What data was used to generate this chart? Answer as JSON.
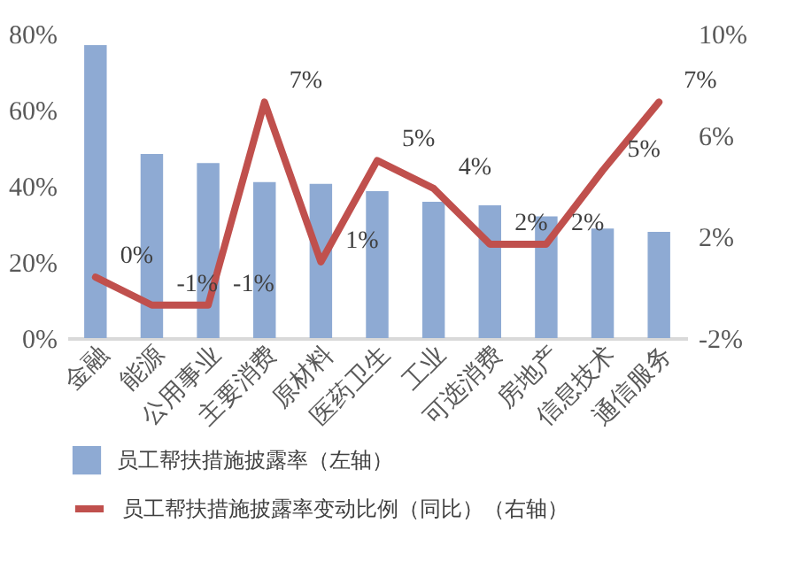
{
  "chart_data": {
    "type": "bar",
    "categories": [
      "金融",
      "能源",
      "公用事业",
      "主要消费",
      "原材料",
      "医药卫生",
      "工业",
      "可选消费",
      "房地产",
      "信息技术",
      "通信服务"
    ],
    "series": [
      {
        "name": "员工帮扶措施披露率（左轴）",
        "color": "#8eaad3",
        "values": [
          77,
          48.4,
          46,
          41,
          40.5,
          38.6,
          35.8,
          34.9,
          32,
          28.8,
          27.9
        ]
      },
      {
        "name": "员工帮扶措施披露率变动比例（同比）（右轴）",
        "type": "line",
        "axis": "y2",
        "color": "#c0504d",
        "values": [
          0.4,
          -0.7,
          -0.7,
          7.3,
          1.0,
          5.0,
          3.9,
          1.7,
          1.7,
          4.6,
          7.3
        ],
        "value_labels": [
          "0%",
          "-1%",
          "-1%",
          "7%",
          "1%",
          "5%",
          "4%",
          "2%",
          "2%",
          "5%",
          "7%"
        ]
      }
    ],
    "ylim": [
      0,
      80
    ],
    "yticks": [
      {
        "value": 0,
        "label": "0%"
      },
      {
        "value": 20,
        "label": "20%"
      },
      {
        "value": 40,
        "label": "40%"
      },
      {
        "value": 60,
        "label": "60%"
      },
      {
        "value": 80,
        "label": "80%"
      }
    ],
    "y2lim": [
      -2,
      10
    ],
    "y2ticks": [
      {
        "value": -2,
        "label": "-2%"
      },
      {
        "value": 2,
        "label": "2%"
      },
      {
        "value": 6,
        "label": "6%"
      },
      {
        "value": 10,
        "label": "10%"
      }
    ],
    "grid": false,
    "legend": "bottom",
    "marker": "none",
    "line_style": "solid"
  }
}
